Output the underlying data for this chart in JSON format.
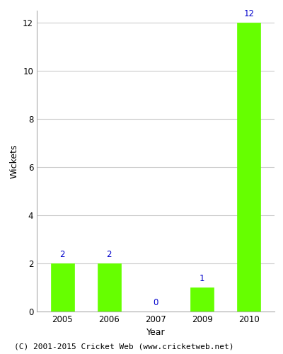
{
  "years": [
    "2005",
    "2006",
    "2007",
    "2009",
    "2010"
  ],
  "values": [
    2,
    2,
    0,
    1,
    12
  ],
  "bar_color": "#66ff00",
  "bar_edge_color": "#66ff00",
  "label_color": "#0000cc",
  "xlabel": "Year",
  "ylabel": "Wickets",
  "ylim": [
    0,
    12.5
  ],
  "yticks": [
    0,
    2,
    4,
    6,
    8,
    10,
    12
  ],
  "footnote": "(C) 2001-2015 Cricket Web (www.cricketweb.net)",
  "background_color": "#ffffff",
  "plot_background_color": "#ffffff",
  "grid_color": "#cccccc",
  "label_fontsize": 8.5,
  "axis_label_fontsize": 9,
  "footnote_fontsize": 8
}
